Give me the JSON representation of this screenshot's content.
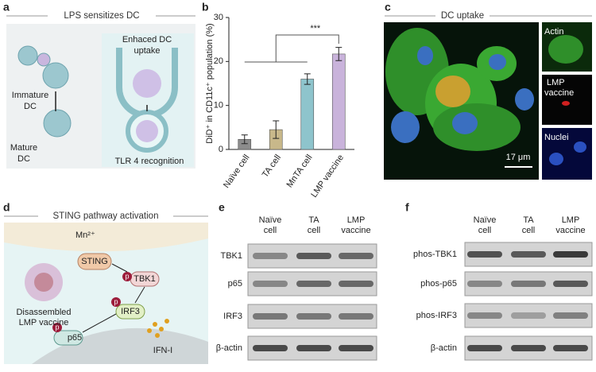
{
  "panels": {
    "a": {
      "label": "a",
      "title": "LPS sensitizes DC",
      "uptake": [
        "Enhaced DC",
        "uptake"
      ],
      "immature": [
        "Immature",
        "DC"
      ],
      "mature": [
        "Mature",
        "DC"
      ],
      "recognition": "TLR 4 recognition"
    },
    "b": {
      "label": "b"
    },
    "c": {
      "label": "c",
      "title": "DC uptake",
      "actin": "Actin",
      "lmp": [
        "LMP",
        "vaccine"
      ],
      "nuclei": "Nuclei",
      "scale": "17 μm"
    },
    "d": {
      "label": "d",
      "title": "STING pathway activation",
      "mn": "Mn²⁺",
      "sting": "STING",
      "tbk1": "TBK1",
      "irf3": "IRF3",
      "p65": "p65",
      "vaccine": [
        "Disassembled",
        "LMP vaccine"
      ],
      "ifn": "IFN-I",
      "p": "p"
    },
    "e": {
      "label": "e",
      "columns": [
        [
          "Naïve",
          "cell"
        ],
        [
          "TA",
          "cell"
        ],
        [
          "LMP",
          "vaccine"
        ]
      ],
      "rows": [
        "TBK1",
        "p65",
        "IRF3",
        "β-actin"
      ]
    },
    "f": {
      "label": "f",
      "columns": [
        [
          "Naïve",
          "cell"
        ],
        [
          "TA",
          "cell"
        ],
        [
          "LMP",
          "vaccine"
        ]
      ],
      "rows": [
        "phos-TBK1",
        "phos-p65",
        "phos-IRF3",
        "β-actin"
      ]
    }
  },
  "chart_data": {
    "type": "bar",
    "ylabel": "DiD⁺ in CD11c⁺ population (%)",
    "categories": [
      "Naïve cell",
      "TA cell",
      "MnTA cell",
      "LMP vaccine"
    ],
    "values": [
      2.3,
      4.5,
      16,
      21.7
    ],
    "errors": [
      1,
      2,
      1.2,
      1.5
    ],
    "colors": [
      "#8c8c8c",
      "#c8b88a",
      "#8ec4cc",
      "#c9b3db"
    ],
    "ylim": [
      0,
      30
    ],
    "yticks": [
      0,
      10,
      20,
      30
    ],
    "annotation": "***"
  }
}
